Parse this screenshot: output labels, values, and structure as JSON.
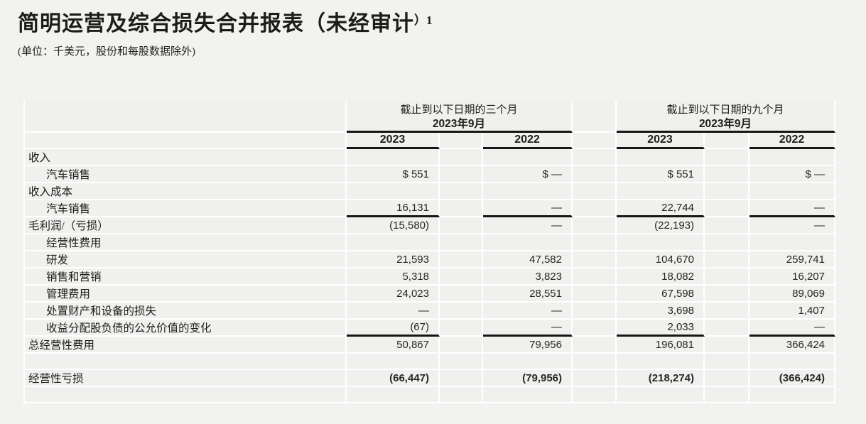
{
  "header": {
    "title": "简明运营及综合损失合并报表（未经审计",
    "title_sup": "）1",
    "units_note": "(单位：千美元，股份和每股数据除外)"
  },
  "table": {
    "groups": [
      {
        "period_label": "截止到以下日期的三个月",
        "date_label": "2023年9月",
        "years": [
          "2023",
          "2022"
        ]
      },
      {
        "period_label": "截止到以下日期的九个月",
        "date_label": "2023年9月",
        "years": [
          "2023",
          "2022"
        ]
      }
    ],
    "rows": [
      {
        "label": "收入",
        "indent": 0,
        "values": [
          "",
          "",
          "",
          ""
        ]
      },
      {
        "label": "汽车销售",
        "indent": 1,
        "values": [
          "$ 551",
          "$ —",
          "$ 551",
          "$ —"
        ]
      },
      {
        "label": "收入成本",
        "indent": 0,
        "values": [
          "",
          "",
          "",
          ""
        ]
      },
      {
        "label": "汽车销售",
        "indent": 1,
        "values": [
          "16,131",
          "—",
          "22,744",
          "—"
        ],
        "sum_line": true
      },
      {
        "label": "毛利润/（亏损）",
        "indent": 0,
        "values": [
          "(15,580)",
          "—",
          "(22,193)",
          "—"
        ]
      },
      {
        "label": "经营性费用",
        "indent": 1,
        "values": [
          "",
          "",
          "",
          ""
        ]
      },
      {
        "label": "研发",
        "indent": 1,
        "values": [
          "21,593",
          "47,582",
          "104,670",
          "259,741"
        ]
      },
      {
        "label": "销售和营销",
        "indent": 1,
        "values": [
          "5,318",
          "3,823",
          "18,082",
          "16,207"
        ]
      },
      {
        "label": "管理费用",
        "indent": 1,
        "values": [
          "24,023",
          "28,551",
          "67,598",
          "89,069"
        ]
      },
      {
        "label": "处置财产和设备的损失",
        "indent": 1,
        "values": [
          "—",
          "—",
          "3,698",
          "1,407"
        ]
      },
      {
        "label": "收益分配股负债的公允价值的变化",
        "indent": 1,
        "values": [
          "(67)",
          "—",
          "2,033",
          "—"
        ],
        "sum_line": true
      },
      {
        "label": "总经营性费用",
        "indent": 0,
        "values": [
          "50,867",
          "79,956",
          "196,081",
          "366,424"
        ]
      },
      {
        "label": "",
        "indent": 0,
        "values": [
          "",
          "",
          "",
          ""
        ]
      },
      {
        "label": "经营性亏损",
        "indent": 0,
        "values": [
          "(66,447)",
          "(79,956)",
          "(218,274)",
          "(366,424)"
        ],
        "bold_values": true
      },
      {
        "label": "",
        "indent": 0,
        "values": [
          "",
          "",
          "",
          ""
        ]
      }
    ]
  }
}
